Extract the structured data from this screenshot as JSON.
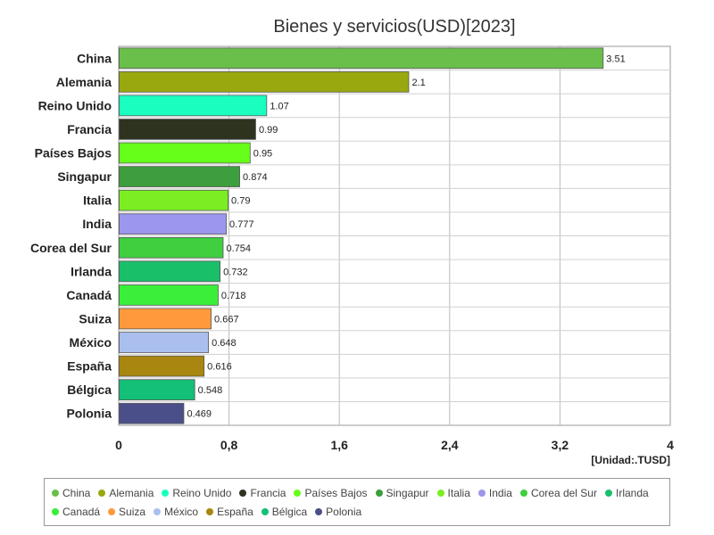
{
  "chart_data": {
    "type": "bar",
    "orientation": "horizontal",
    "title": "Bienes y servicios(USD)[2023]",
    "unit_label": "[Unidad:.TUSD]",
    "xlim": [
      0,
      4
    ],
    "x_ticks": [
      0,
      0.8,
      1.6,
      2.4,
      3.2,
      4
    ],
    "x_tick_labels": [
      "0",
      "0,8",
      "1,6",
      "2,4",
      "3,2",
      "4"
    ],
    "grid": true,
    "legend_position": "bottom",
    "categories": [
      "China",
      "Alemania",
      "Reino Unido",
      "Francia",
      "Países Bajos",
      "Singapur",
      "Italia",
      "India",
      "Corea del Sur",
      "Irlanda",
      "Canadá",
      "Suiza",
      "México",
      "España",
      "Bélgica",
      "Polonia"
    ],
    "values": [
      3.51,
      2.1,
      1.07,
      0.99,
      0.95,
      0.874,
      0.79,
      0.777,
      0.754,
      0.732,
      0.718,
      0.667,
      0.648,
      0.616,
      0.548,
      0.469
    ],
    "value_labels": [
      "3.51",
      "2.1",
      "1.07",
      "0.99",
      "0.95",
      "0.874",
      "0.79",
      "0.777",
      "0.754",
      "0.732",
      "0.718",
      "0.667",
      "0.648",
      "0.616",
      "0.548",
      "0.469"
    ],
    "colors": [
      "#6abf4b",
      "#9aa80f",
      "#1affc0",
      "#2e3320",
      "#66ff1a",
      "#3c9e3c",
      "#7aee22",
      "#9b96ee",
      "#3fcf3f",
      "#1abf6a",
      "#3aee3a",
      "#ff9a3c",
      "#aabfee",
      "#a8860f",
      "#14bf78",
      "#4a4f8a"
    ]
  }
}
